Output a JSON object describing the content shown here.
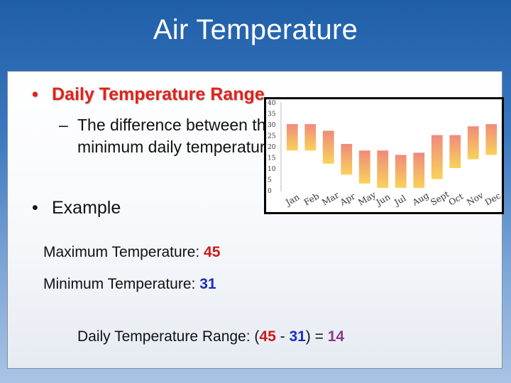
{
  "slide": {
    "title": "Air Temperature",
    "bullet1": "Daily Temperature Range",
    "bullet_marker": "•",
    "sub_dash": "–",
    "sub_line1": "The difference between the maximum and",
    "sub_line2": "minimum daily temperatures",
    "bullet2": "Example",
    "max_label": "Maximum Temperature: ",
    "max_value": "45",
    "min_label": "Minimum Temperature: ",
    "min_value": "31",
    "range_label": "Daily Temperature Range: (",
    "range_minus": " - ",
    "range_close": ") = ",
    "range_value": "14",
    "colors": {
      "red": "#cc1a1a",
      "blue": "#1a2fb8",
      "purple": "#8a3a84",
      "heading_red": "#e0221a"
    }
  },
  "chart_data": {
    "type": "bar",
    "categories": [
      "Jan",
      "Feb",
      "Mar",
      "Apr",
      "May",
      "Jun",
      "Jul",
      "Aug",
      "Sept",
      "Oct",
      "Nov",
      "Dec"
    ],
    "series": [
      {
        "kind": "range",
        "low": [
          18,
          18,
          12,
          7,
          3,
          1,
          1,
          1,
          5,
          10,
          14,
          16
        ],
        "high": [
          30,
          30,
          27,
          21,
          18,
          18,
          16,
          17,
          25,
          25,
          29,
          30
        ]
      }
    ],
    "y_ticks": [
      "40",
      "35",
      "30",
      "25",
      "20",
      "15",
      "10",
      "5",
      "0"
    ],
    "ylim": [
      0,
      40
    ],
    "bar_colors": {
      "top": "#f08a7c",
      "bottom": "#f9d25a"
    }
  }
}
